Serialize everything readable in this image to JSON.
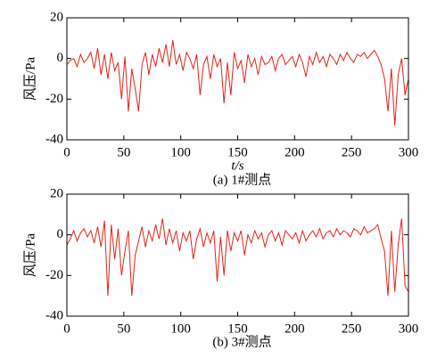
{
  "chart_data": [
    {
      "type": "line",
      "caption": "(a) 1#测点",
      "xlabel": "t/s",
      "ylabel": "风压/Pa",
      "xlim": [
        0,
        300
      ],
      "xticks": [
        0,
        50,
        100,
        150,
        200,
        250,
        300
      ],
      "ylim": [
        -40,
        20
      ],
      "yticks": [
        -40,
        -20,
        0,
        20
      ],
      "x": [
        0,
        3,
        6,
        9,
        12,
        15,
        18,
        21,
        24,
        27,
        30,
        33,
        36,
        39,
        42,
        45,
        48,
        51,
        54,
        57,
        60,
        63,
        66,
        69,
        72,
        75,
        78,
        81,
        84,
        87,
        90,
        93,
        96,
        99,
        102,
        105,
        108,
        111,
        114,
        117,
        120,
        123,
        126,
        129,
        132,
        135,
        138,
        141,
        144,
        147,
        150,
        153,
        156,
        159,
        162,
        165,
        168,
        171,
        174,
        177,
        180,
        183,
        186,
        189,
        192,
        195,
        198,
        201,
        204,
        207,
        210,
        213,
        216,
        219,
        222,
        225,
        228,
        231,
        234,
        237,
        240,
        243,
        246,
        249,
        252,
        255,
        258,
        261,
        264,
        267,
        270,
        273,
        276,
        279,
        282,
        285,
        288,
        291,
        294,
        297,
        300
      ],
      "series": [
        {
          "color": "#e32219",
          "values": [
            -3,
            -1,
            0,
            -4,
            2,
            -2,
            0,
            3,
            -5,
            5,
            -8,
            2,
            -10,
            3,
            -6,
            -2,
            -20,
            1,
            -26,
            -5,
            -15,
            -26,
            -3,
            3,
            -8,
            2,
            -4,
            5,
            -2,
            7,
            -4,
            9,
            -3,
            2,
            -6,
            3,
            0,
            -5,
            2,
            -18,
            -3,
            1,
            -10,
            2,
            -4,
            0,
            -22,
            -2,
            -18,
            3,
            -5,
            -1,
            -12,
            2,
            -4,
            0,
            -8,
            1,
            -3,
            -2,
            1,
            -6,
            0,
            2,
            -3,
            -1,
            1,
            -4,
            2,
            -2,
            -9,
            1,
            -3,
            3,
            -2,
            1,
            -4,
            2,
            0,
            -3,
            2,
            -1,
            3,
            0,
            -2,
            2,
            1,
            3,
            0,
            2,
            4,
            1,
            -3,
            -10,
            -26,
            -5,
            -33,
            -8,
            0,
            -18,
            -10
          ]
        }
      ]
    },
    {
      "type": "line",
      "caption": "(b) 3#测点",
      "ylabel": "风压/Pa",
      "xlim": [
        0,
        300
      ],
      "xticks": [
        0,
        50,
        100,
        150,
        200,
        250,
        300
      ],
      "ylim": [
        -40,
        20
      ],
      "yticks": [
        -40,
        -20,
        0,
        20
      ],
      "x": [
        0,
        3,
        6,
        9,
        12,
        15,
        18,
        21,
        24,
        27,
        30,
        33,
        36,
        39,
        42,
        45,
        48,
        51,
        54,
        57,
        60,
        63,
        66,
        69,
        72,
        75,
        78,
        81,
        84,
        87,
        90,
        93,
        96,
        99,
        102,
        105,
        108,
        111,
        114,
        117,
        120,
        123,
        126,
        129,
        132,
        135,
        138,
        141,
        144,
        147,
        150,
        153,
        156,
        159,
        162,
        165,
        168,
        171,
        174,
        177,
        180,
        183,
        186,
        189,
        192,
        195,
        198,
        201,
        204,
        207,
        210,
        213,
        216,
        219,
        222,
        225,
        228,
        231,
        234,
        237,
        240,
        243,
        246,
        249,
        252,
        255,
        258,
        261,
        264,
        267,
        270,
        273,
        276,
        279,
        282,
        285,
        288,
        291,
        294,
        297,
        300
      ],
      "series": [
        {
          "color": "#e32219",
          "values": [
            -5,
            -2,
            2,
            -3,
            1,
            3,
            -1,
            2,
            -4,
            4,
            -6,
            7,
            -30,
            5,
            -12,
            3,
            -20,
            -8,
            2,
            -30,
            -10,
            -3,
            4,
            -6,
            2,
            -3,
            5,
            -2,
            8,
            -5,
            3,
            -4,
            2,
            -8,
            1,
            -3,
            2,
            -12,
            -2,
            3,
            -6,
            1,
            -4,
            2,
            -23,
            -1,
            -20,
            2,
            -8,
            1,
            -3,
            2,
            -10,
            0,
            -4,
            2,
            -2,
            1,
            -6,
            0,
            2,
            -3,
            1,
            -5,
            2,
            0,
            -2,
            1,
            -4,
            2,
            -3,
            0,
            2,
            -1,
            3,
            -2,
            1,
            2,
            -1,
            3,
            0,
            2,
            1,
            -1,
            3,
            2,
            0,
            4,
            1,
            2,
            3,
            5,
            -2,
            -8,
            -30,
            2,
            -28,
            -5,
            8,
            -25,
            -28
          ]
        }
      ]
    }
  ]
}
